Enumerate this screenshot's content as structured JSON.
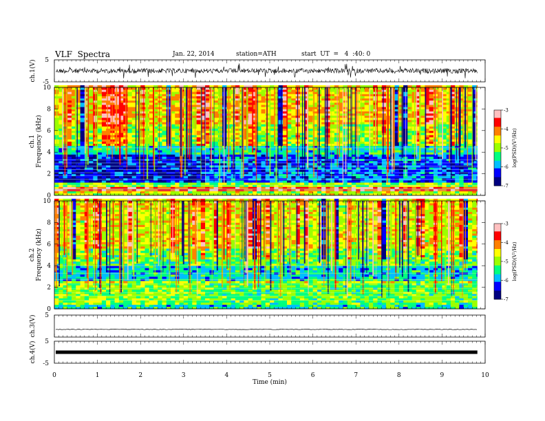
{
  "header": {
    "title": "VLF  Spectra",
    "date": "Jan. 22, 2014",
    "station": "station=ATH",
    "start": "start  UT  =   4  :40: 0"
  },
  "colors": {
    "spectrum": [
      "#000080",
      "#0000ff",
      "#00bfff",
      "#00ff80",
      "#9bff00",
      "#ffff00",
      "#ff8000",
      "#ff0000",
      "#ffc0c0"
    ]
  },
  "chart_data": [
    {
      "type": "line",
      "name": "ch1-waveform",
      "ylabel": "ch.1(V)",
      "ylim": [
        -5,
        5
      ],
      "yticks": [
        "5",
        "-5"
      ],
      "baseline": 0
    },
    {
      "type": "heatmap",
      "name": "ch1-spectrogram",
      "ylabel_channel": "ch.1",
      "ylabel": "Frequency  (kHz)",
      "ylim": [
        0,
        10
      ],
      "yticks": [
        "0",
        "2",
        "4",
        "6",
        "8",
        "10"
      ],
      "colorbar": {
        "label": "log(PSD)(V²/Hz)",
        "ticks": [
          "-3",
          "-4",
          "-5",
          "-6",
          "-7"
        ],
        "range": [
          -7,
          -3
        ]
      }
    },
    {
      "type": "heatmap",
      "name": "ch2-spectrogram",
      "ylabel_channel": "ch.2",
      "ylabel": "Frequency  (kHz)",
      "ylim": [
        0,
        10
      ],
      "yticks": [
        "0",
        "2",
        "4",
        "6",
        "8",
        "10"
      ],
      "colorbar": {
        "label": "log(PSD)(V²/Hz)",
        "ticks": [
          "-3",
          "-4",
          "-5",
          "-6",
          "-7"
        ],
        "range": [
          -7,
          -3
        ]
      }
    },
    {
      "type": "line",
      "name": "ch3-waveform",
      "ylabel": "ch.3(V)",
      "ylim": [
        -5,
        5
      ],
      "yticks": [
        "5"
      ],
      "baseline": -1.5
    },
    {
      "type": "line",
      "name": "ch4-waveform",
      "ylabel": "ch.4(V)",
      "ylim": [
        -5,
        5
      ],
      "yticks": [
        "5",
        "-5"
      ],
      "baseline": 0
    }
  ],
  "xaxis": {
    "label": "Time  (min)",
    "range": [
      0,
      10
    ],
    "data_end": 9.82,
    "ticks": [
      "0",
      "1",
      "2",
      "3",
      "4",
      "5",
      "6",
      "7",
      "8",
      "9",
      "10"
    ]
  }
}
